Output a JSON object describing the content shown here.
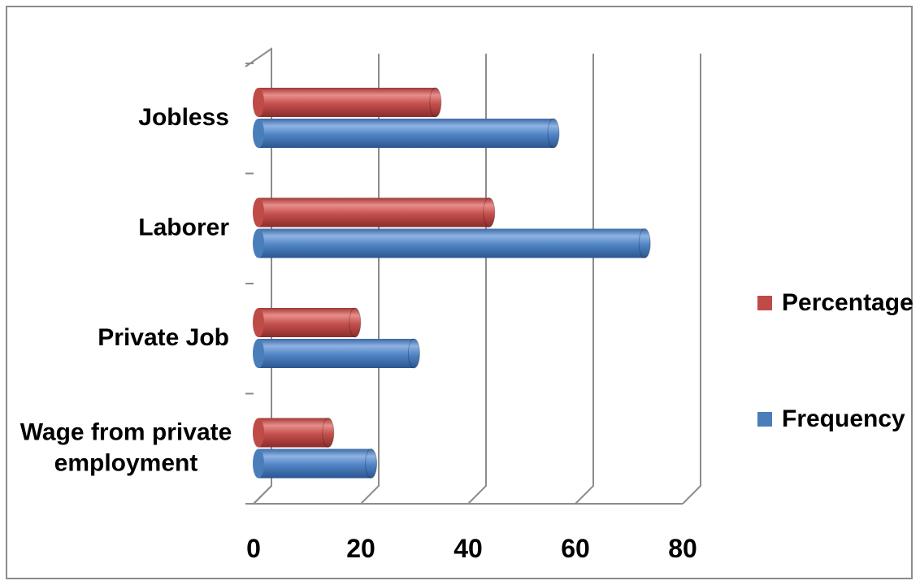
{
  "chart_data": {
    "type": "bar",
    "orientation": "horizontal",
    "categories": [
      "Wage from private employment",
      "Private Job",
      "Laborer",
      "Jobless"
    ],
    "category_lines": [
      [
        "Wage from private",
        "employment"
      ],
      [
        "Private Job"
      ],
      [
        "Laborer"
      ],
      [
        "Jobless"
      ]
    ],
    "series": [
      {
        "name": "Frequency",
        "values": [
          21,
          29,
          72,
          55
        ],
        "color": "#4a7ebb"
      },
      {
        "name": "Percentage",
        "values": [
          13,
          18,
          43,
          33
        ],
        "color": "#be4b48"
      }
    ],
    "xlim": [
      0,
      80
    ],
    "xticks": [
      "0",
      "20",
      "40",
      "60",
      "80"
    ],
    "grid": true,
    "legend_position": "right",
    "legend_order": [
      "Percentage",
      "Frequency"
    ]
  }
}
